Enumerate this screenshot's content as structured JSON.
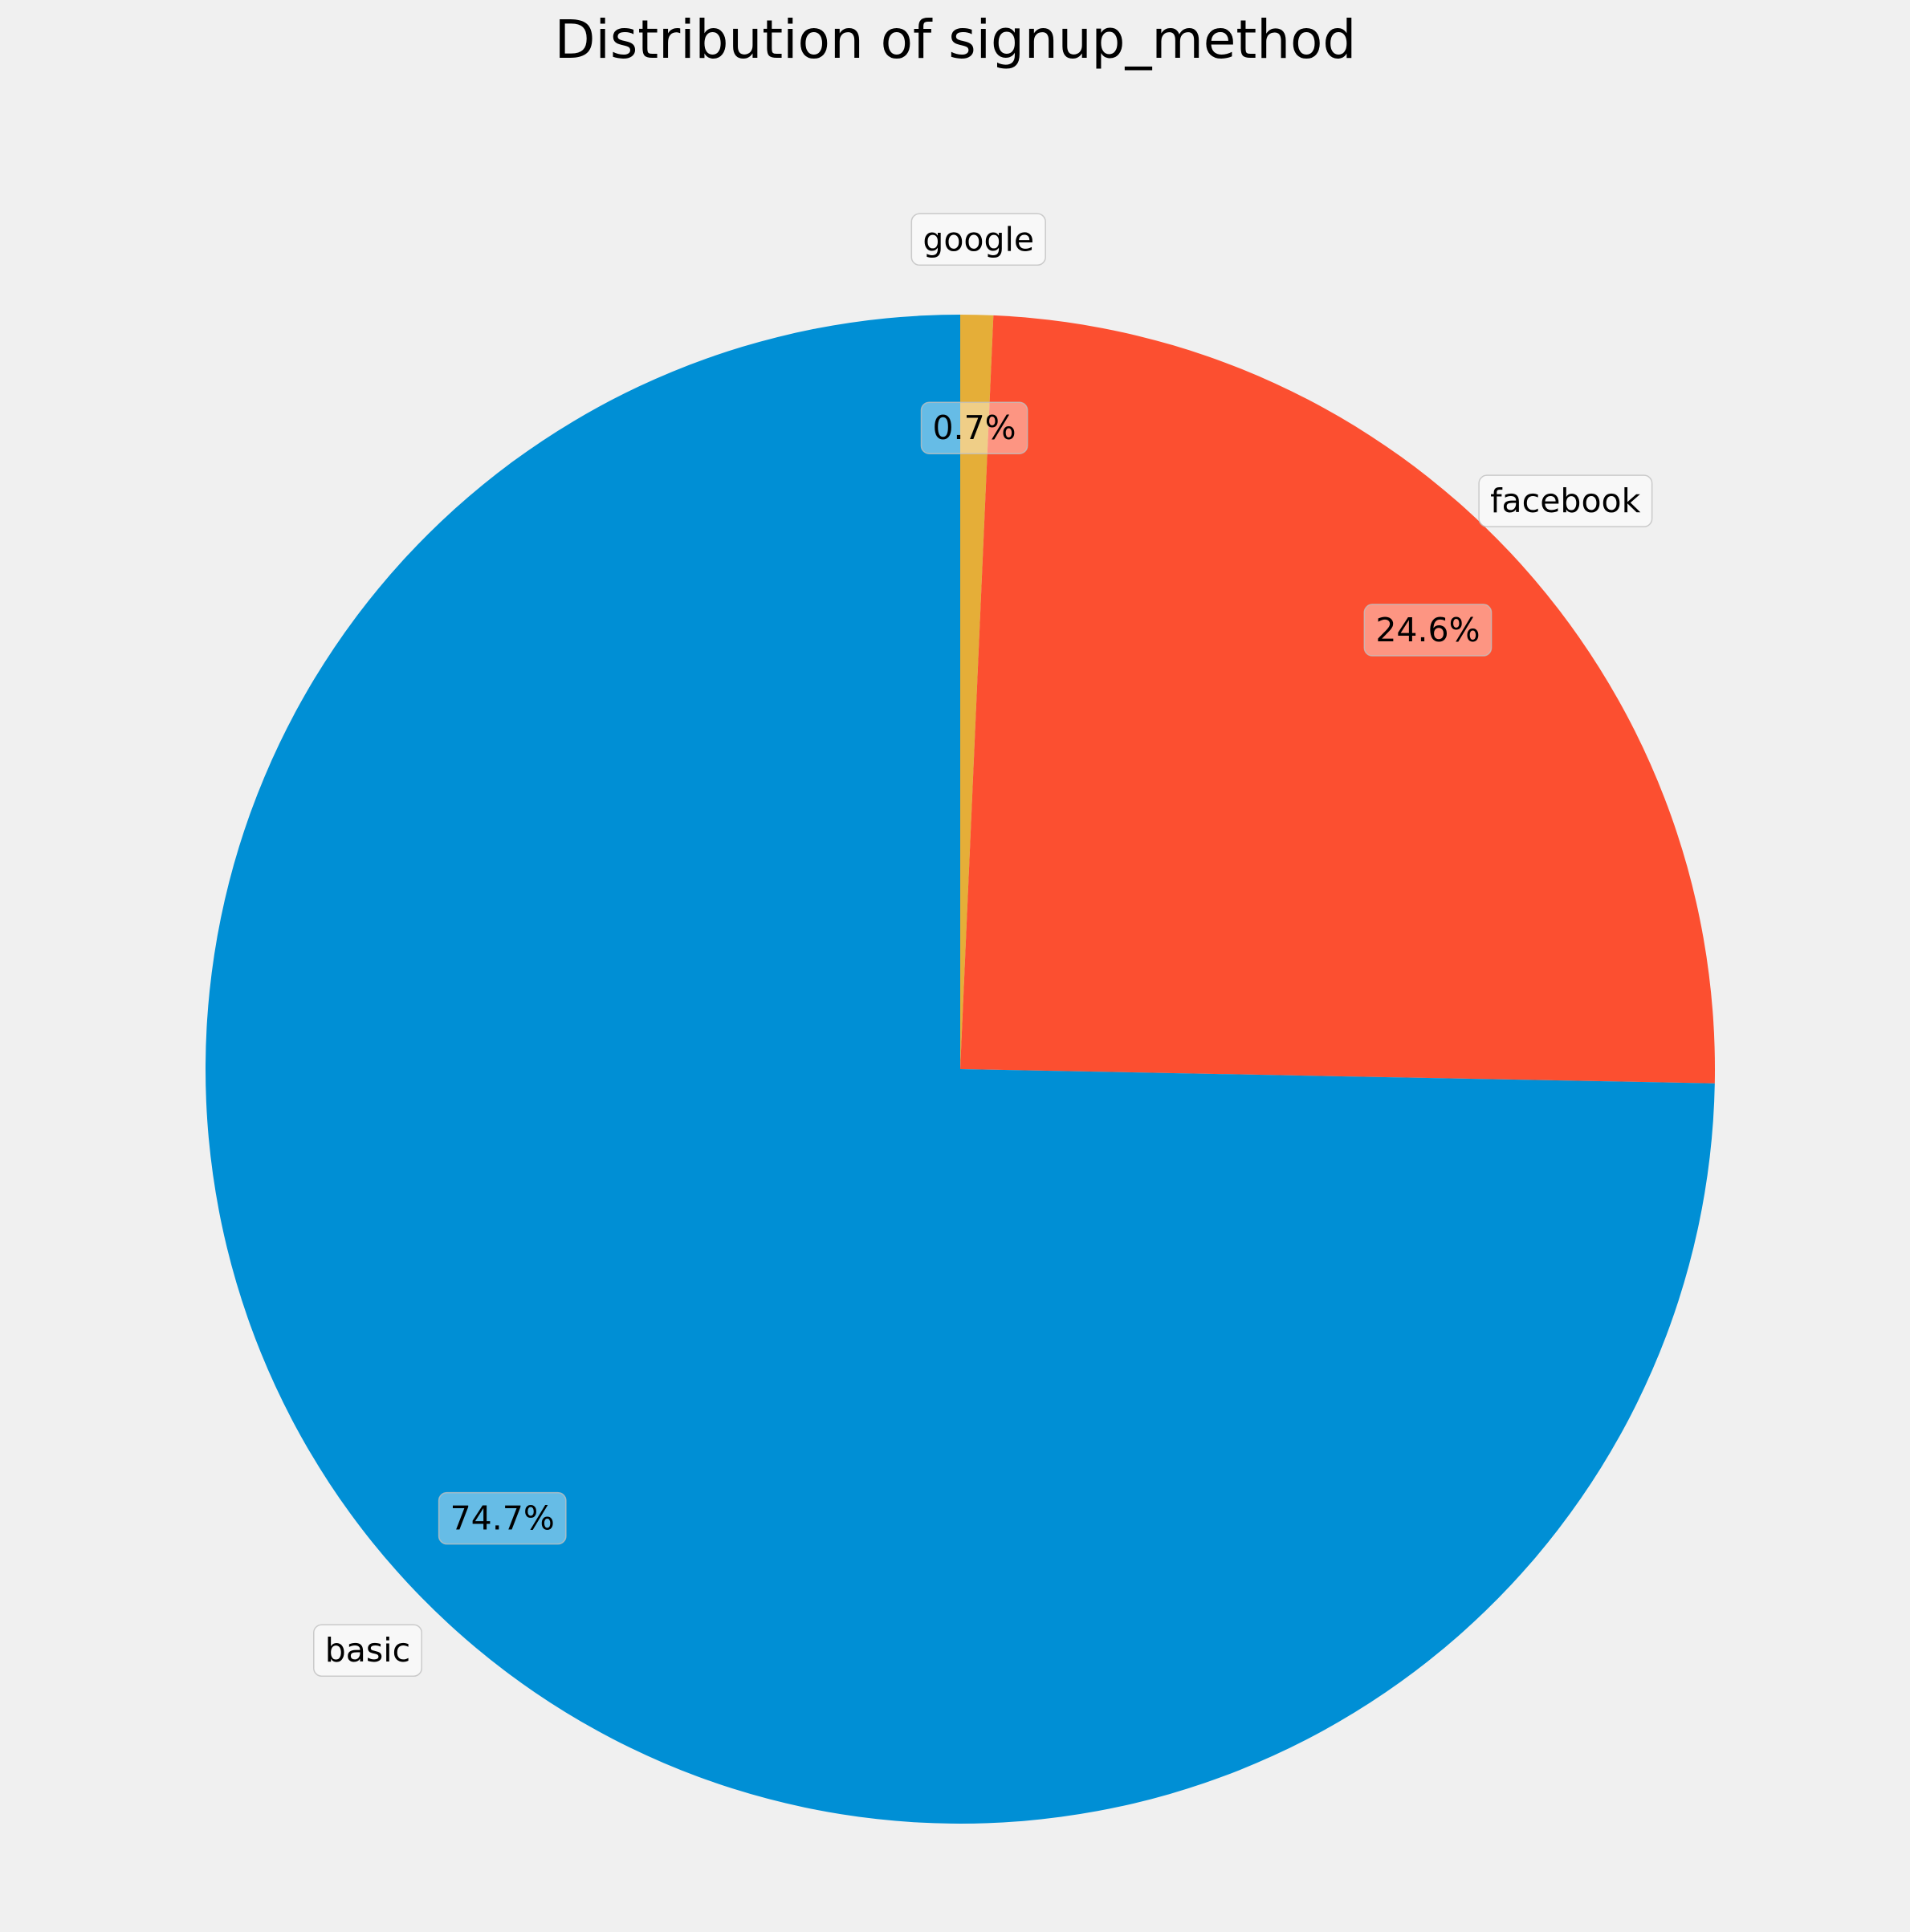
{
  "chart_data": {
    "type": "pie",
    "title": "Distribution of signup_method",
    "start_angle_deg": 90,
    "direction": "clockwise-from-top",
    "slices": [
      {
        "label": "google",
        "value": 0.7,
        "pct_label": "0.7%",
        "color": "#e5ae38"
      },
      {
        "label": "facebook",
        "value": 24.6,
        "pct_label": "24.6%",
        "color": "#fc4f30"
      },
      {
        "label": "basic",
        "value": 74.7,
        "pct_label": "74.7%",
        "color": "#008fd5"
      }
    ],
    "legend": "none",
    "grid": false
  }
}
